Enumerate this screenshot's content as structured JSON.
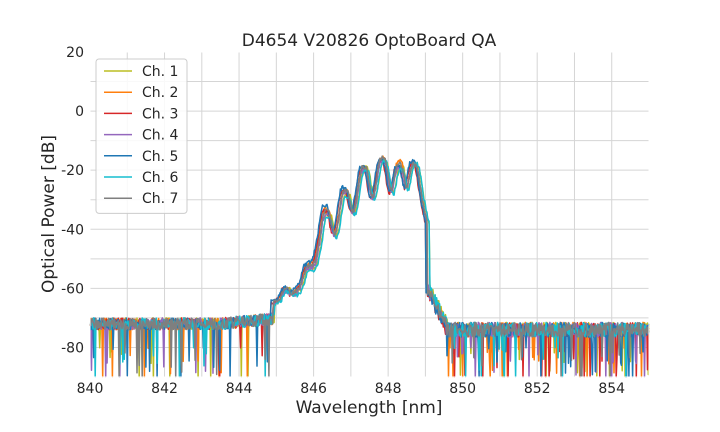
{
  "chart_data": {
    "type": "line",
    "title": "D4654 V20826 OptoBoard QA",
    "xlabel": "Wavelength [nm]",
    "ylabel": "Optical Power [dB]",
    "xlim": [
      840,
      855
    ],
    "ylim": [
      -90,
      20
    ],
    "xticks": [
      840,
      842,
      844,
      846,
      848,
      850,
      852,
      854
    ],
    "yticks": [
      20,
      0,
      -20,
      -40,
      -60,
      -80
    ],
    "grid": true,
    "legend_position": "top-left",
    "noise_floor_db": -72,
    "series": [
      {
        "name": "Ch. 1",
        "color": "#bcbd22",
        "peaks": [
          [
            845.3,
            -63
          ],
          [
            845.9,
            -55
          ],
          [
            846.4,
            -35
          ],
          [
            846.9,
            -28
          ],
          [
            847.4,
            -19
          ],
          [
            847.9,
            -17
          ],
          [
            848.35,
            -19
          ],
          [
            848.75,
            -18
          ]
        ]
      },
      {
        "name": "Ch. 2",
        "color": "#ff7f0e",
        "peaks": [
          [
            845.25,
            -63
          ],
          [
            845.85,
            -54
          ],
          [
            846.35,
            -33
          ],
          [
            846.85,
            -27
          ],
          [
            847.35,
            -19
          ],
          [
            847.85,
            -16
          ],
          [
            848.3,
            -17
          ],
          [
            848.7,
            -18
          ]
        ]
      },
      {
        "name": "Ch. 3",
        "color": "#d62728",
        "peaks": [
          [
            845.2,
            -63
          ],
          [
            845.8,
            -55
          ],
          [
            846.3,
            -34
          ],
          [
            846.8,
            -27
          ],
          [
            847.3,
            -20
          ],
          [
            847.8,
            -17
          ],
          [
            848.25,
            -19
          ],
          [
            848.65,
            -18
          ]
        ]
      },
      {
        "name": "Ch. 4",
        "color": "#9467bd",
        "peaks": [
          [
            845.25,
            -64
          ],
          [
            845.85,
            -55
          ],
          [
            846.35,
            -35
          ],
          [
            846.85,
            -28
          ],
          [
            847.35,
            -20
          ],
          [
            847.85,
            -17
          ],
          [
            848.3,
            -19
          ],
          [
            848.7,
            -18
          ]
        ]
      },
      {
        "name": "Ch. 5",
        "color": "#1f77b4",
        "peaks": [
          [
            845.2,
            -63
          ],
          [
            845.8,
            -54
          ],
          [
            846.3,
            -32
          ],
          [
            846.8,
            -26
          ],
          [
            847.3,
            -19
          ],
          [
            847.8,
            -16
          ],
          [
            848.25,
            -19
          ],
          [
            848.65,
            -17
          ]
        ]
      },
      {
        "name": "Ch. 6",
        "color": "#17becf",
        "peaks": [
          [
            845.3,
            -64
          ],
          [
            845.9,
            -56
          ],
          [
            846.4,
            -36
          ],
          [
            846.9,
            -29
          ],
          [
            847.4,
            -20
          ],
          [
            847.9,
            -17
          ],
          [
            848.35,
            -20
          ],
          [
            848.75,
            -18
          ]
        ]
      },
      {
        "name": "Ch. 7",
        "color": "#7f7f7f",
        "peaks": [
          [
            845.25,
            -63
          ],
          [
            845.85,
            -55
          ],
          [
            846.35,
            -34
          ],
          [
            846.85,
            -27
          ],
          [
            847.35,
            -19
          ],
          [
            847.85,
            -16
          ],
          [
            848.3,
            -18
          ],
          [
            848.7,
            -18
          ]
        ]
      }
    ]
  }
}
